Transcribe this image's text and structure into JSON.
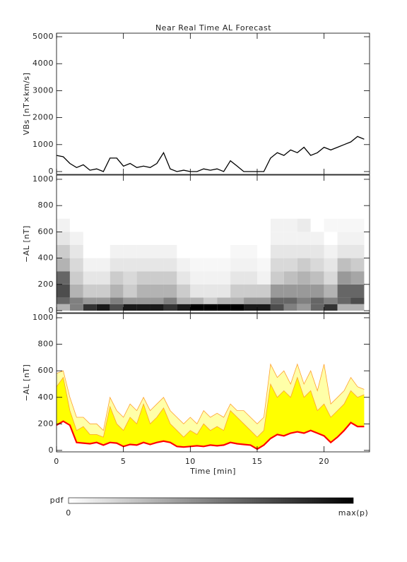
{
  "chart_data": [
    {
      "type": "line",
      "title": "Near Real Time AL Forecast",
      "ylabel": "VBs [nT×km/s]",
      "xlim": [
        0,
        23.4
      ],
      "xticks": [
        0,
        5,
        10,
        15,
        20
      ],
      "ylim": [
        -105,
        5131
      ],
      "yticks": [
        0,
        1000,
        2000,
        3000,
        4000,
        5000
      ],
      "x": [
        0,
        0.5,
        1,
        1.5,
        2,
        2.5,
        3,
        3.5,
        4,
        4.5,
        5,
        5.5,
        6,
        6.5,
        7,
        7.5,
        8,
        8.5,
        9,
        9.5,
        10,
        10.5,
        11,
        11.5,
        12,
        12.5,
        13,
        13.5,
        14,
        14.5,
        15,
        15.5,
        16,
        16.5,
        17,
        17.5,
        18,
        18.5,
        19,
        19.5,
        20,
        20.5,
        21,
        21.5,
        22,
        22.5,
        23
      ],
      "series": [
        {
          "color": "#000000",
          "values": [
            600,
            550,
            300,
            150,
            250,
            50,
            100,
            0,
            500,
            500,
            200,
            300,
            150,
            200,
            150,
            300,
            700,
            100,
            0,
            50,
            0,
            0,
            100,
            50,
            100,
            0,
            400,
            200,
            0,
            0,
            0,
            0,
            500,
            700,
            600,
            800,
            700,
            900,
            600,
            700,
            900,
            800,
            900,
            1000,
            1100,
            1300,
            1200
          ]
        }
      ]
    },
    {
      "type": "heatmap",
      "ylabel": "−AL [nT]",
      "xlim": [
        0,
        23.4
      ],
      "xticks": [
        0,
        5,
        10,
        15,
        20
      ],
      "ylim": [
        -16,
        1032
      ],
      "yticks": [
        0,
        200,
        400,
        600,
        800,
        1000
      ],
      "x_edges": [
        0,
        1,
        2,
        3,
        4,
        5,
        6,
        7,
        8,
        9,
        10,
        11,
        12,
        13,
        14,
        15,
        16,
        17,
        18,
        19,
        20,
        21,
        22,
        23
      ],
      "y_edges": [
        0,
        50,
        100,
        200,
        300,
        400,
        500,
        600,
        700
      ],
      "colors": [
        "#ffffff",
        "#000000"
      ],
      "values": [
        [
          0.3,
          0.5,
          0.8,
          0.9,
          0.7,
          0.9,
          0.9,
          0.9,
          0.8,
          0.9,
          1,
          1,
          1,
          1,
          0.9,
          0.9,
          0.7,
          0.5,
          0.4,
          0.6,
          0.8,
          0.3,
          0.3
        ],
        [
          0.6,
          0.5,
          0.4,
          0.4,
          0.5,
          0.4,
          0.4,
          0.4,
          0.5,
          0.3,
          0.3,
          0.2,
          0.3,
          0.3,
          0.4,
          0.4,
          0.6,
          0.6,
          0.5,
          0.6,
          0.5,
          0.6,
          0.7
        ],
        [
          0.7,
          0.3,
          0.2,
          0.2,
          0.3,
          0.2,
          0.3,
          0.3,
          0.3,
          0.2,
          0.1,
          0.1,
          0.1,
          0.2,
          0.2,
          0.2,
          0.4,
          0.4,
          0.4,
          0.4,
          0.3,
          0.6,
          0.6
        ],
        [
          0.6,
          0.2,
          0.1,
          0.1,
          0.2,
          0.15,
          0.2,
          0.2,
          0.2,
          0.1,
          0.05,
          0.05,
          0.05,
          0.1,
          0.1,
          0.05,
          0.2,
          0.25,
          0.3,
          0.25,
          0.15,
          0.4,
          0.35
        ],
        [
          0.3,
          0.15,
          0.05,
          0.05,
          0.1,
          0.1,
          0.1,
          0.1,
          0.1,
          0.05,
          0.03,
          0.03,
          0.03,
          0.05,
          0.05,
          0.03,
          0.15,
          0.15,
          0.2,
          0.15,
          0.1,
          0.25,
          0.2
        ],
        [
          0.2,
          0.1,
          0,
          0,
          0.05,
          0.05,
          0.05,
          0.05,
          0.05,
          0,
          0,
          0,
          0,
          0.03,
          0.03,
          0,
          0.1,
          0.1,
          0.1,
          0.1,
          0.05,
          0.1,
          0.1
        ],
        [
          0.1,
          0.05,
          0,
          0,
          0,
          0,
          0,
          0,
          0,
          0,
          0,
          0,
          0,
          0,
          0,
          0,
          0.05,
          0.05,
          0.05,
          0.05,
          0,
          0.05,
          0.05
        ],
        [
          0.05,
          0,
          0,
          0,
          0,
          0,
          0,
          0,
          0,
          0,
          0,
          0,
          0,
          0,
          0,
          0,
          0.05,
          0.05,
          0.08,
          0,
          0.03,
          0.03,
          0.03
        ]
      ],
      "colorbar": {
        "label": "pdf",
        "min_label": "0",
        "max_label": "max(p)"
      }
    },
    {
      "type": "band",
      "ylabel": "−AL [nT]",
      "xlabel": "Time [min]",
      "xlim": [
        0,
        23.4
      ],
      "xticks": [
        0,
        5,
        10,
        15,
        20
      ],
      "ylim": [
        -11,
        1032
      ],
      "yticks": [
        0,
        200,
        400,
        600,
        800,
        1000
      ],
      "x": [
        0,
        0.5,
        1,
        1.5,
        2,
        2.5,
        3,
        3.5,
        4,
        4.5,
        5,
        5.5,
        6,
        6.5,
        7,
        7.5,
        8,
        8.5,
        9,
        9.5,
        10,
        10.5,
        11,
        11.5,
        12,
        12.5,
        13,
        13.5,
        14,
        14.5,
        15,
        15.5,
        16,
        16.5,
        17,
        17.5,
        18,
        18.5,
        19,
        19.5,
        20,
        20.5,
        21,
        21.5,
        22,
        22.5,
        23
      ],
      "series": [
        {
          "color": "#ffffa8",
          "edge": "#ffa030",
          "values": [
            580,
            600,
            400,
            250,
            250,
            200,
            200,
            150,
            400,
            300,
            250,
            350,
            300,
            400,
            300,
            350,
            400,
            300,
            250,
            200,
            250,
            200,
            300,
            250,
            280,
            250,
            350,
            300,
            300,
            250,
            200,
            250,
            650,
            550,
            600,
            500,
            650,
            500,
            600,
            450,
            650,
            350,
            400,
            450,
            550,
            480,
            460
          ]
        },
        {
          "color": "#ffff00",
          "edge": "#ffa030",
          "values": [
            480,
            550,
            300,
            150,
            180,
            120,
            120,
            100,
            330,
            200,
            150,
            250,
            200,
            350,
            200,
            250,
            320,
            200,
            150,
            100,
            150,
            120,
            200,
            150,
            180,
            150,
            300,
            250,
            200,
            150,
            100,
            150,
            500,
            400,
            450,
            400,
            550,
            400,
            450,
            300,
            350,
            250,
            300,
            350,
            450,
            400,
            420
          ]
        },
        {
          "color": "#ff0000",
          "values": [
            190,
            220,
            190,
            60,
            55,
            50,
            60,
            40,
            60,
            55,
            30,
            45,
            40,
            60,
            45,
            60,
            70,
            60,
            30,
            25,
            30,
            35,
            30,
            40,
            35,
            40,
            60,
            50,
            45,
            40,
            10,
            40,
            90,
            120,
            110,
            130,
            140,
            130,
            150,
            130,
            110,
            60,
            100,
            150,
            210,
            180,
            180
          ]
        }
      ]
    }
  ]
}
